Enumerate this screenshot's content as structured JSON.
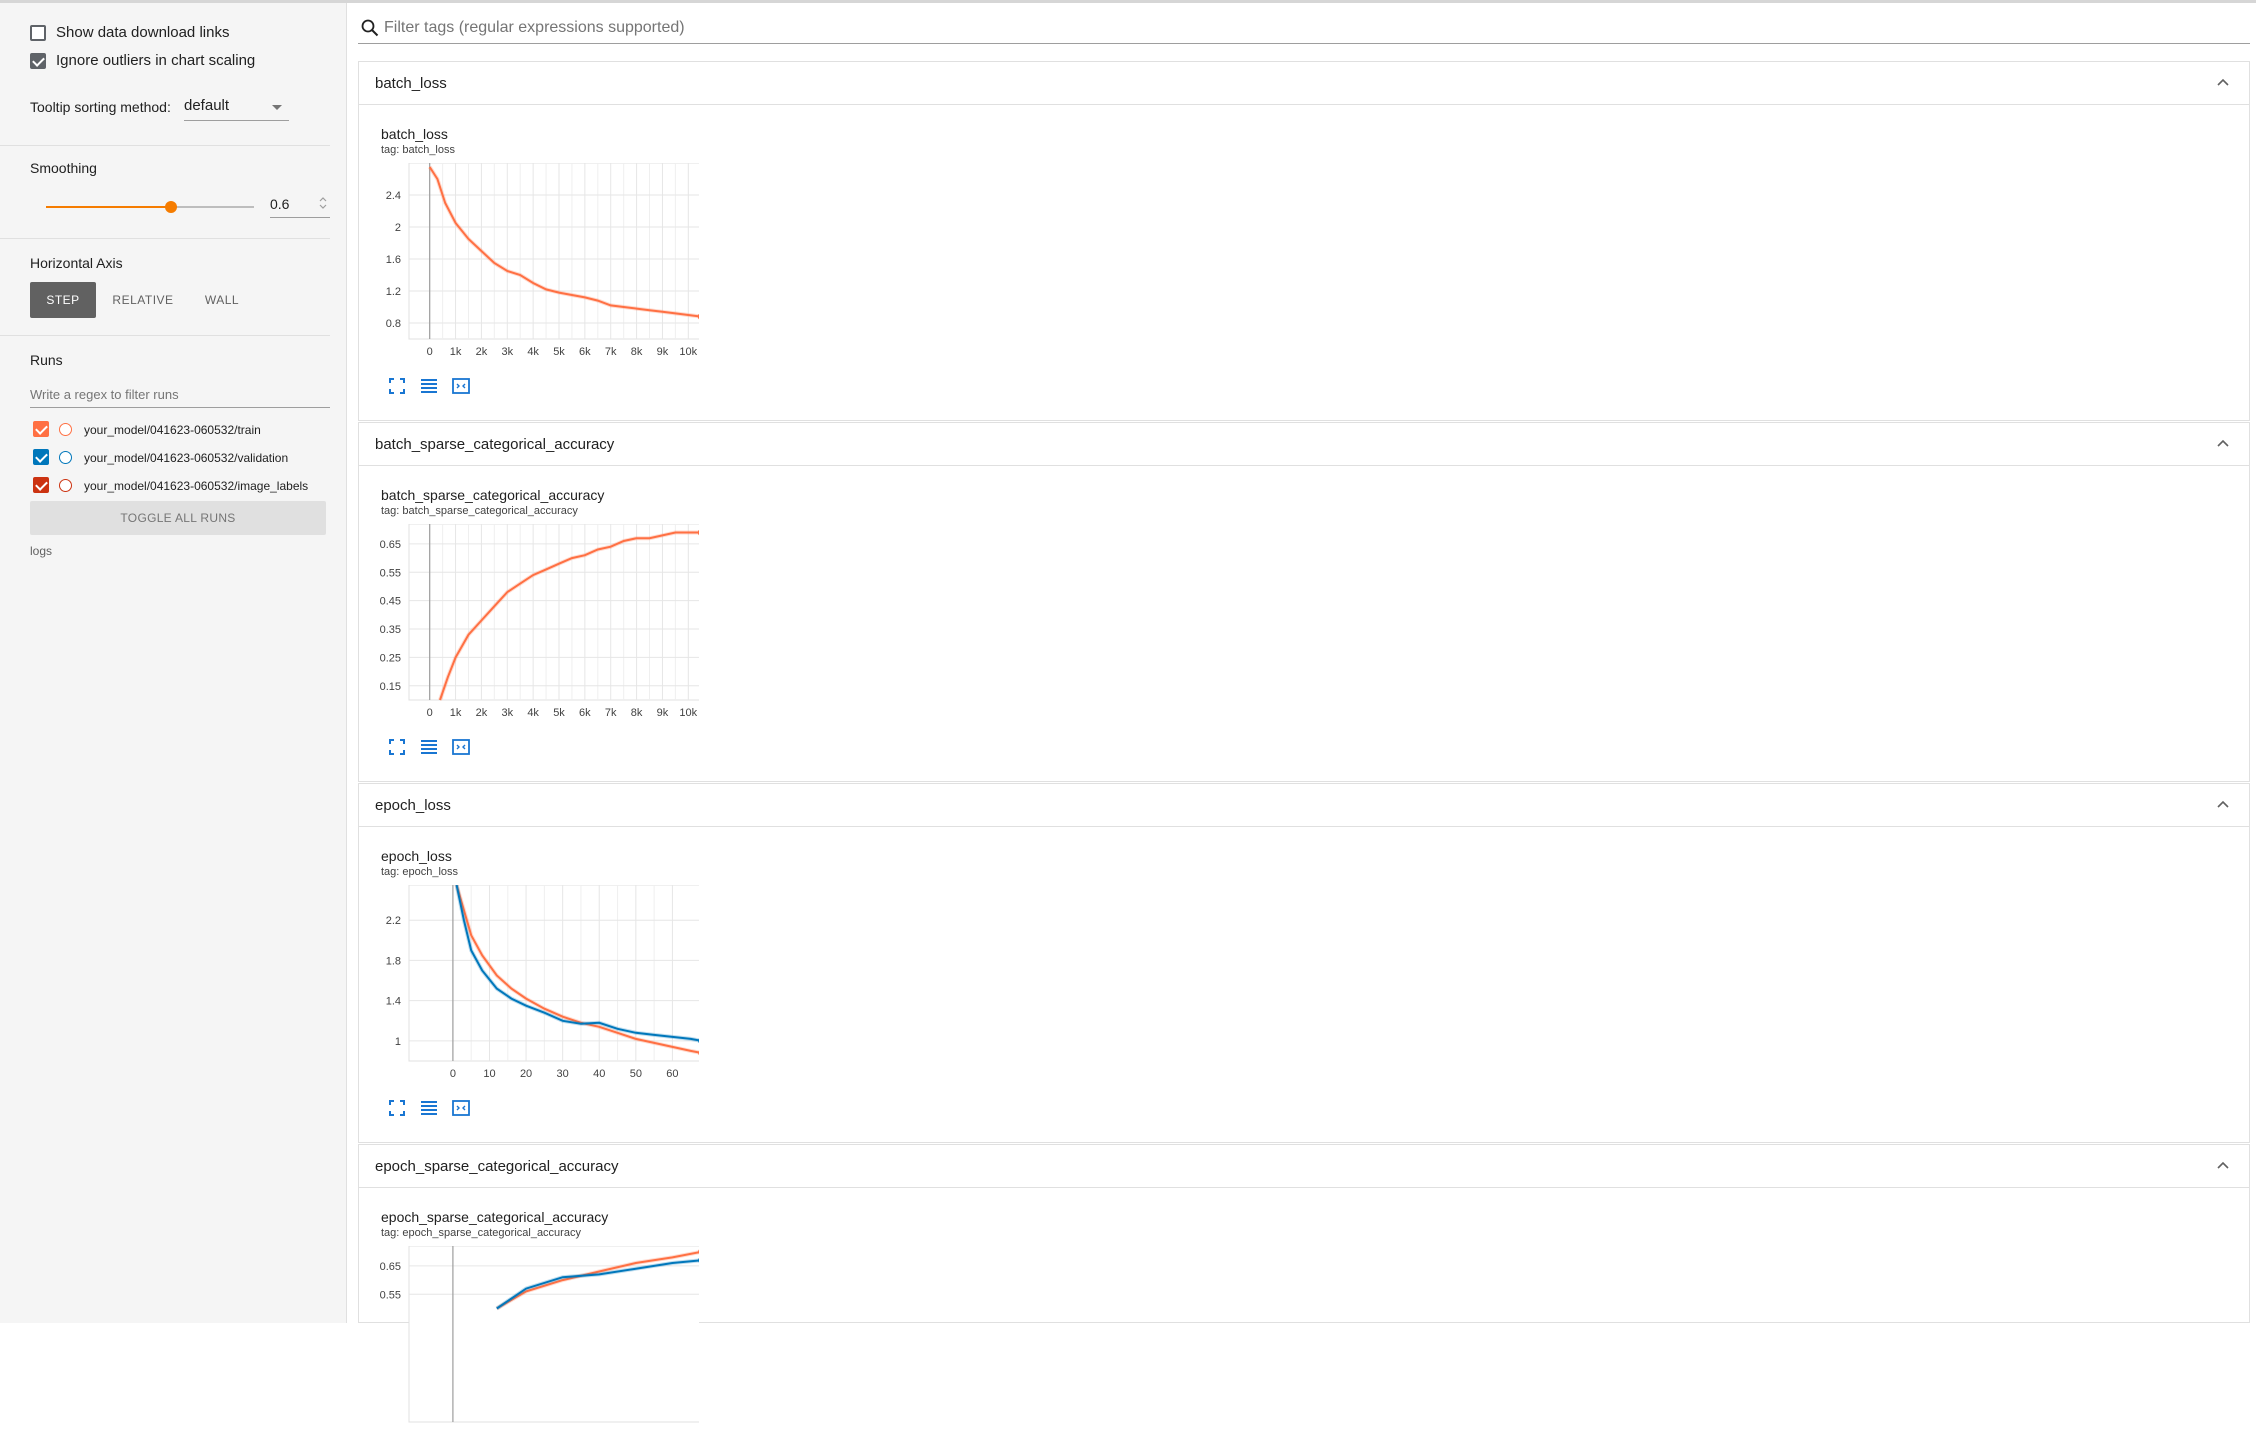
{
  "sidebar": {
    "show_download": "Show data download links",
    "ignore_outliers": "Ignore outliers in chart scaling",
    "tooltip_label": "Tooltip sorting method:",
    "tooltip_value": "default",
    "smoothing_label": "Smoothing",
    "smoothing_value": "0.6",
    "smoothing_level": 0.6,
    "haxis_label": "Horizontal Axis",
    "haxis_options": [
      "STEP",
      "RELATIVE",
      "WALL"
    ],
    "haxis_selected": "STEP",
    "runs_label": "Runs",
    "runs_filter_placeholder": "Write a regex to filter runs",
    "runs": [
      {
        "name": "your_model/041623-060532/train",
        "color": "#ff7043"
      },
      {
        "name": "your_model/041623-060532/validation",
        "color": "#0077bb"
      },
      {
        "name": "your_model/041623-060532/image_labels",
        "color": "#cc3311"
      }
    ],
    "toggle_all": "TOGGLE ALL RUNS",
    "logdir": "logs"
  },
  "search": {
    "placeholder": "Filter tags (regular expressions supported)"
  },
  "cards": [
    {
      "header": "batch_loss",
      "title": "batch_loss",
      "tag": "tag: batch_loss"
    },
    {
      "header": "batch_sparse_categorical_accuracy",
      "title": "batch_sparse_categorical_accuracy",
      "tag": "tag: batch_sparse_categorical_accuracy"
    },
    {
      "header": "epoch_loss",
      "title": "epoch_loss",
      "tag": "tag: epoch_loss"
    },
    {
      "header": "epoch_sparse_categorical_accuracy",
      "title": "epoch_sparse_categorical_accuracy",
      "tag": "tag: epoch_sparse_categorical_accuracy"
    }
  ],
  "chart_data": [
    {
      "type": "line",
      "xlim": [
        -800,
        10800
      ],
      "ylim": [
        0.6,
        2.8
      ],
      "xticks": [
        0,
        1000,
        2000,
        3000,
        4000,
        5000,
        6000,
        7000,
        8000,
        9000,
        10000
      ],
      "xtick_labels": [
        "0",
        "1k",
        "2k",
        "3k",
        "4k",
        "5k",
        "6k",
        "7k",
        "8k",
        "9k",
        "10k"
      ],
      "yticks": [
        0.8,
        1.2,
        1.6,
        2,
        2.4
      ],
      "ytick_labels": [
        "0.8",
        "1.2",
        "1.6",
        "2",
        "2.4"
      ],
      "series": [
        {
          "color": "#ff7043",
          "x": [
            0,
            300,
            600,
            1000,
            1500,
            2000,
            2500,
            3000,
            3500,
            4000,
            4500,
            5000,
            5500,
            6000,
            6500,
            7000,
            7500,
            8000,
            8500,
            9000,
            9500,
            10000,
            10500
          ],
          "y": [
            2.75,
            2.6,
            2.3,
            2.05,
            1.85,
            1.7,
            1.55,
            1.45,
            1.4,
            1.3,
            1.22,
            1.18,
            1.15,
            1.12,
            1.08,
            1.02,
            1.0,
            0.98,
            0.96,
            0.94,
            0.92,
            0.9,
            0.88
          ]
        }
      ]
    },
    {
      "type": "line",
      "xlim": [
        -800,
        10800
      ],
      "ylim": [
        0.1,
        0.72
      ],
      "xticks": [
        0,
        1000,
        2000,
        3000,
        4000,
        5000,
        6000,
        7000,
        8000,
        9000,
        10000
      ],
      "xtick_labels": [
        "0",
        "1k",
        "2k",
        "3k",
        "4k",
        "5k",
        "6k",
        "7k",
        "8k",
        "9k",
        "10k"
      ],
      "yticks": [
        0.15,
        0.25,
        0.35,
        0.45,
        0.55,
        0.65
      ],
      "ytick_labels": [
        "0.15",
        "0.25",
        "0.35",
        "0.45",
        "0.55",
        "0.65"
      ],
      "series": [
        {
          "color": "#ff7043",
          "x": [
            400,
            700,
            1000,
            1500,
            2000,
            2500,
            3000,
            3500,
            4000,
            4500,
            5000,
            5500,
            6000,
            6500,
            7000,
            7500,
            8000,
            8500,
            9000,
            9500,
            10000,
            10500
          ],
          "y": [
            0.1,
            0.18,
            0.25,
            0.33,
            0.38,
            0.43,
            0.48,
            0.51,
            0.54,
            0.56,
            0.58,
            0.6,
            0.61,
            0.63,
            0.64,
            0.66,
            0.67,
            0.67,
            0.68,
            0.69,
            0.69,
            0.69
          ]
        }
      ]
    },
    {
      "type": "line",
      "xlim": [
        -12,
        70
      ],
      "ylim": [
        0.8,
        2.55
      ],
      "xticks": [
        0,
        10,
        20,
        30,
        40,
        50,
        60
      ],
      "xtick_labels": [
        "0",
        "10",
        "20",
        "30",
        "40",
        "50",
        "60"
      ],
      "yticks": [
        1,
        1.4,
        1.8,
        2.2
      ],
      "ytick_labels": [
        "1",
        "1.4",
        "1.8",
        "2.2"
      ],
      "series": [
        {
          "color": "#ff7043",
          "x": [
            1,
            3,
            5,
            8,
            12,
            16,
            20,
            25,
            30,
            35,
            40,
            45,
            50,
            55,
            60,
            65,
            68
          ],
          "y": [
            2.55,
            2.3,
            2.05,
            1.85,
            1.65,
            1.52,
            1.42,
            1.32,
            1.24,
            1.18,
            1.14,
            1.08,
            1.02,
            0.98,
            0.94,
            0.9,
            0.88
          ]
        },
        {
          "color": "#0077bb",
          "x": [
            1,
            3,
            5,
            8,
            12,
            16,
            20,
            25,
            30,
            35,
            40,
            45,
            50,
            55,
            60,
            65,
            68
          ],
          "y": [
            2.55,
            2.2,
            1.9,
            1.7,
            1.52,
            1.42,
            1.35,
            1.28,
            1.2,
            1.17,
            1.18,
            1.12,
            1.08,
            1.06,
            1.04,
            1.02,
            1.0
          ]
        }
      ]
    },
    {
      "type": "line",
      "xlim": [
        -12,
        70
      ],
      "ylim": [
        0.1,
        0.72
      ],
      "xticks": [],
      "xtick_labels": [],
      "yticks": [
        0.55,
        0.65
      ],
      "ytick_labels": [
        "0.55",
        "0.65"
      ],
      "series": [
        {
          "color": "#ff7043",
          "x": [
            12,
            20,
            30,
            40,
            50,
            60,
            68
          ],
          "y": [
            0.5,
            0.56,
            0.6,
            0.63,
            0.66,
            0.68,
            0.7
          ]
        },
        {
          "color": "#0077bb",
          "x": [
            12,
            20,
            30,
            40,
            50,
            60,
            68
          ],
          "y": [
            0.5,
            0.57,
            0.61,
            0.62,
            0.64,
            0.66,
            0.67
          ]
        }
      ]
    }
  ]
}
